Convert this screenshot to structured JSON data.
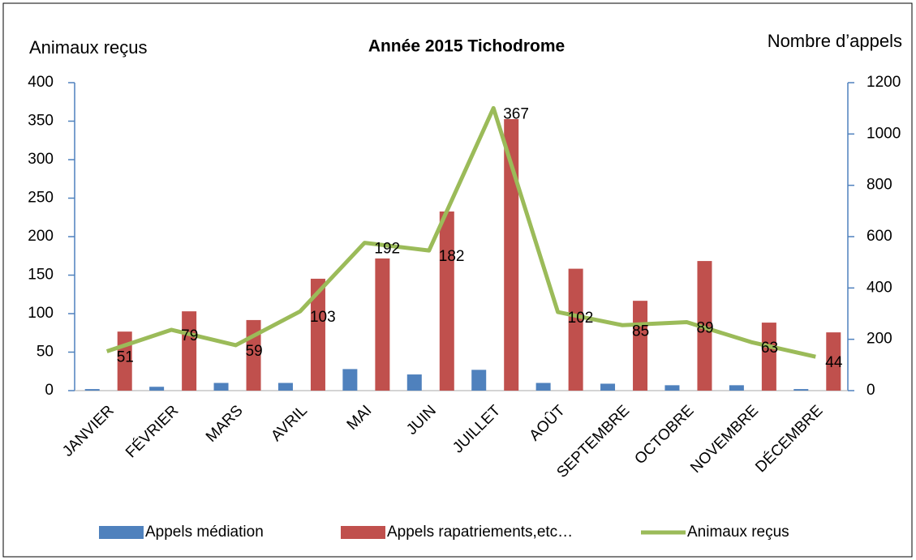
{
  "chart_data": {
    "type": "bar-line",
    "title": "Année 2015 Tichodrome",
    "y_label": "Animaux reçus",
    "y2_label": "Nombre d’appels",
    "categories": [
      "JANVIER",
      "FÉVRIER",
      "MARS",
      "AVRIL",
      "MAI",
      "JUIN",
      "JUILLET",
      "AOÛT",
      "SEPTEMBRE",
      "OCTOBRE",
      "NOVEMBRE",
      "DÉCEMBRE"
    ],
    "ylim": [
      0,
      400
    ],
    "yticks": [
      0,
      50,
      100,
      150,
      200,
      250,
      300,
      350,
      400
    ],
    "y2lim": [
      0,
      1200
    ],
    "y2ticks": [
      0,
      200,
      400,
      600,
      800,
      1000,
      1200
    ],
    "series": [
      {
        "name": "Appels médiation",
        "type": "bar",
        "axis": "y2",
        "color": "#4f81bd",
        "values": [
          6,
          15,
          30,
          30,
          84,
          63,
          81,
          30,
          27,
          21,
          21,
          6
        ]
      },
      {
        "name": "Appels rapatriements,etc…",
        "type": "bar",
        "axis": "y2",
        "color": "#c0504d",
        "values": [
          230,
          309,
          275,
          436,
          515,
          698,
          1058,
          475,
          350,
          505,
          265,
          227
        ]
      },
      {
        "name": "Animaux reçus",
        "type": "line",
        "axis": "y",
        "color": "#9bbb59",
        "values": [
          51,
          79,
          59,
          103,
          192,
          182,
          367,
          102,
          85,
          89,
          63,
          44
        ]
      }
    ]
  }
}
